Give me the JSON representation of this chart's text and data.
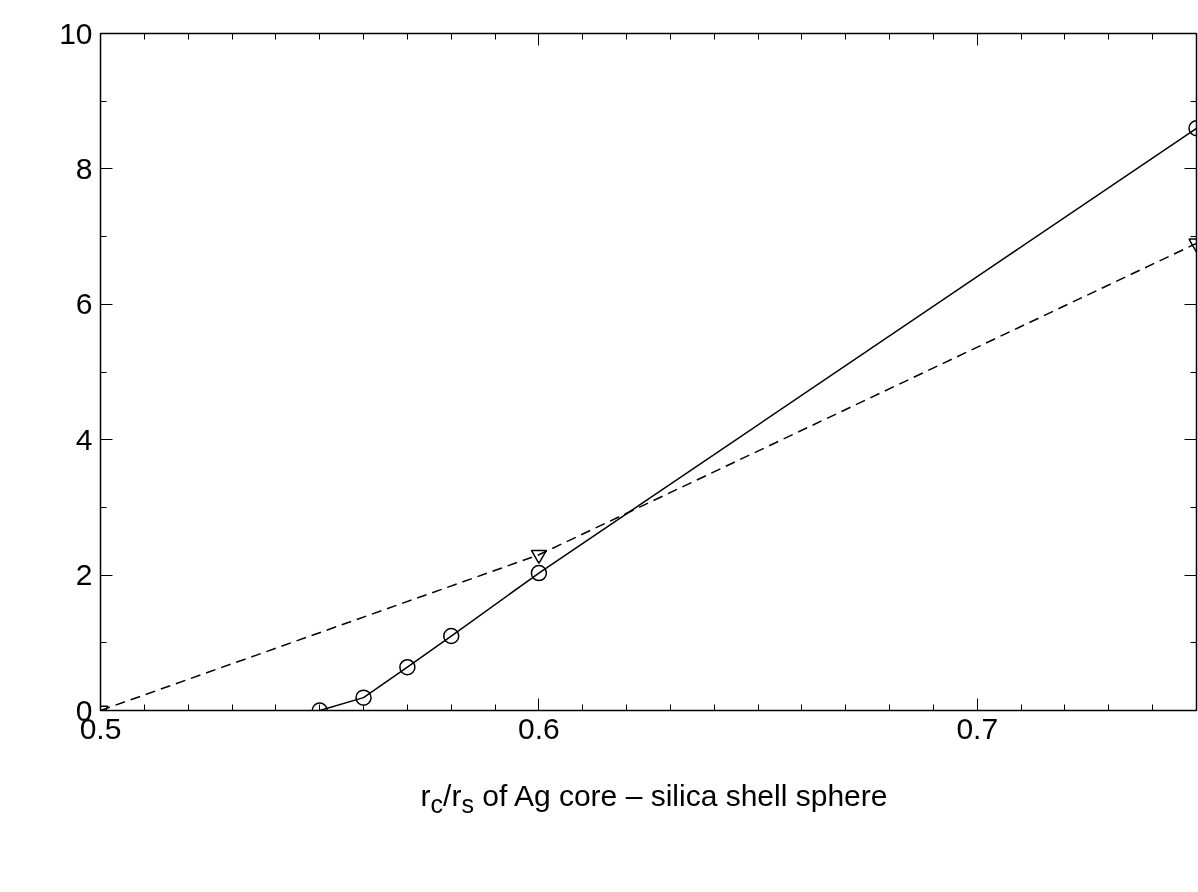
{
  "chart_data": {
    "type": "line",
    "xlabel": "r$_{c}$/r$_{s}$ of Ag core – silica shell sphere",
    "xlim": [
      0.5,
      0.75
    ],
    "xticks": [
      0.5,
      0.6,
      0.7
    ],
    "ylim": [
      0,
      10
    ],
    "yticks": [
      0,
      2,
      4,
      6,
      8,
      10
    ],
    "grid": false,
    "series": [
      {
        "color": "#000000",
        "marker": "circle",
        "line_style": "solid",
        "x": [
          0.55,
          0.56,
          0.57,
          0.58,
          0.6,
          0.75
        ],
        "values": [
          0,
          0.19,
          0.64,
          1.1,
          2.03,
          8.6
        ]
      },
      {
        "color": "#000000",
        "marker": "triangle",
        "line_style": "dashed",
        "x": [
          0.5,
          0.6,
          0.75
        ],
        "values": [
          0,
          2.3,
          6.9
        ]
      }
    ]
  }
}
